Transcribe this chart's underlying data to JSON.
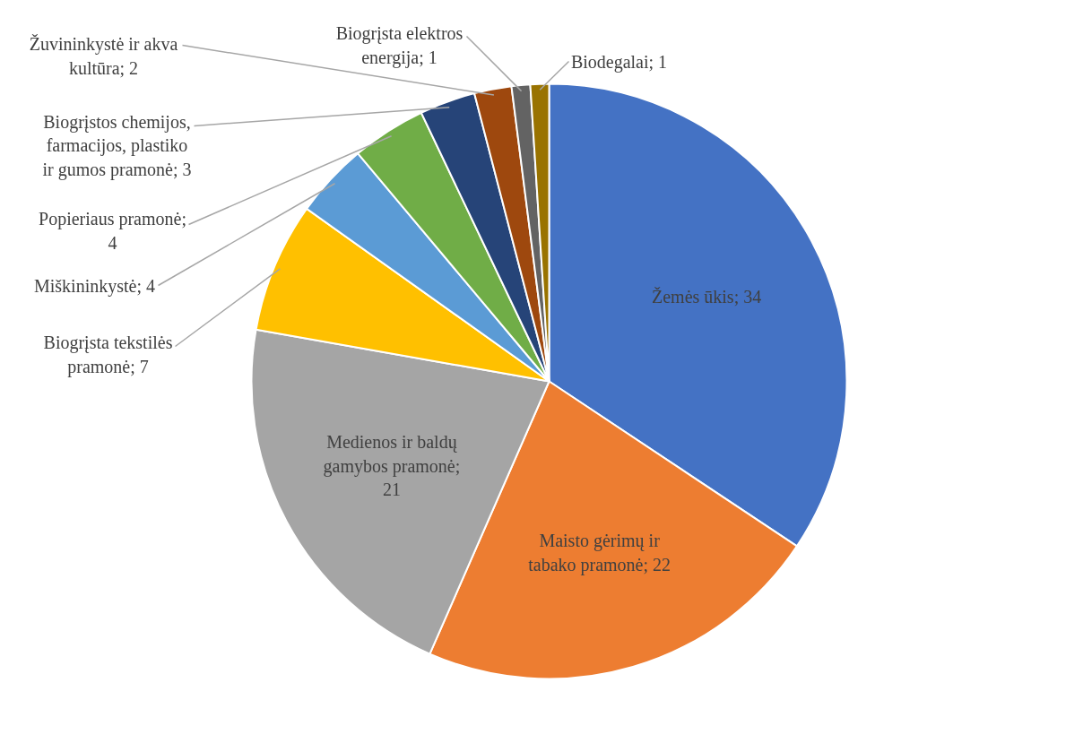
{
  "chart_data": {
    "type": "pie",
    "categories": [
      "Žemės ūkis; 34",
      "Maisto gėrimų ir tabako pramonė; 22",
      "Medienos ir baldų gamybos pramonė; 21",
      "Biogrįsta tekstilės pramonė; 7",
      "Miškininkystė; 4",
      "Popieriaus pramonė; 4",
      "Biogrįstos chemijos, farmacijos, plastiko ir gumos pramonė; 3",
      "Žuvininkystė ir akva kultūra; 2",
      "Biogrįsta elektros energija; 1",
      "Biodegalai; 1"
    ],
    "values": [
      34,
      22,
      21,
      7,
      4,
      4,
      3,
      2,
      1,
      1
    ],
    "colors": [
      "#4472c4",
      "#ed7d31",
      "#a5a5a5",
      "#ffc000",
      "#5b9bd5",
      "#70ad47",
      "#264478",
      "#9e480e",
      "#636363",
      "#997300"
    ]
  }
}
